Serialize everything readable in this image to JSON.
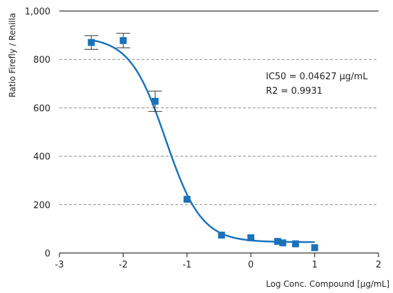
{
  "chart_data": {
    "type": "scatter",
    "title": "",
    "xlabel": "Log Conc. Compound [µg/mL]",
    "ylabel": "Ratio Firefly / Renilla",
    "xlim": [
      -3,
      2
    ],
    "ylim": [
      0,
      1000
    ],
    "x_ticks": [
      -3,
      -2,
      -1,
      0,
      1,
      2
    ],
    "y_ticks": [
      0,
      200,
      400,
      600,
      800,
      1000
    ],
    "x_tick_labels": [
      "-3",
      "-2",
      "-1",
      "0",
      "1",
      "2"
    ],
    "y_tick_labels": [
      "0",
      "200",
      "400",
      "600",
      "800",
      "1,000"
    ],
    "grid": "horizontal dashed",
    "marker_color": "#1a72ba",
    "curve_color": "#1a72ba",
    "points": [
      {
        "x": -2.5,
        "y": 870,
        "err": 28
      },
      {
        "x": -2.0,
        "y": 878,
        "err": 30
      },
      {
        "x": -1.5,
        "y": 627,
        "err": 42
      },
      {
        "x": -1.0,
        "y": 222,
        "err": 0
      },
      {
        "x": -0.46,
        "y": 74,
        "err": 0
      },
      {
        "x": 0.0,
        "y": 63,
        "err": 0
      },
      {
        "x": 0.42,
        "y": 48,
        "err": 0
      },
      {
        "x": 0.5,
        "y": 42,
        "err": 0
      },
      {
        "x": 0.7,
        "y": 38,
        "err": 0
      },
      {
        "x": 1.0,
        "y": 22,
        "err": 0
      }
    ],
    "fit": {
      "top": 893,
      "bottom": 45,
      "log_ic50": -1.3347,
      "hill": 1.55,
      "x_range": [
        -2.5,
        1.0
      ]
    },
    "annotations": [
      "IC50 = 0.04627 µg/mL",
      "R2 = 0.9931"
    ]
  }
}
